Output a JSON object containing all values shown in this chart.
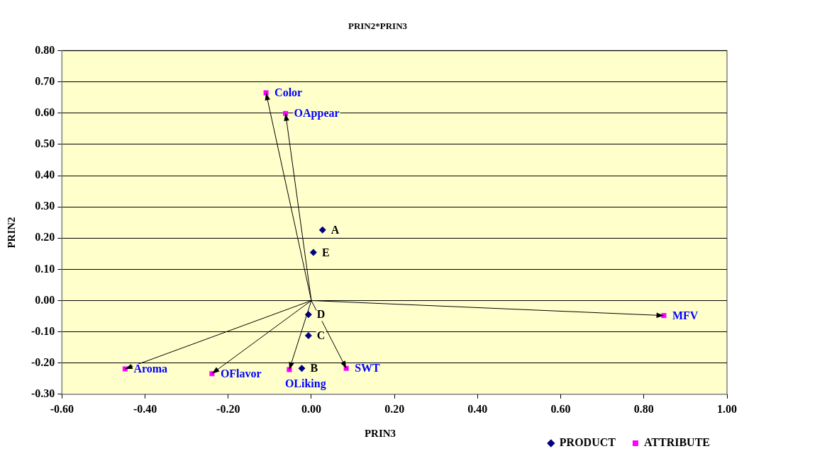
{
  "chart_data": {
    "type": "scatter",
    "title": "PRIN2*PRIN3",
    "xlabel": "PRIN3",
    "ylabel": "PRIN2",
    "series": [
      {
        "name": "PRODUCT",
        "color": "#000080",
        "marker": "diamond",
        "x": [
          0.027,
          0.005,
          -0.007,
          -0.007,
          -0.023
        ],
        "values": [
          0.226,
          0.154,
          -0.045,
          -0.112,
          -0.217
        ]
      },
      {
        "name": "ATTRIBUTE",
        "color": "#ff00ff",
        "marker": "square",
        "x": [
          -0.109,
          -0.062,
          -0.448,
          -0.239,
          -0.053,
          0.084,
          0.848
        ],
        "values": [
          0.665,
          0.599,
          -0.219,
          -0.234,
          -0.221,
          -0.217,
          -0.048
        ]
      }
    ],
    "annotations": [
      {
        "text": "A",
        "x": 0.027,
        "y": 0.226
      },
      {
        "text": "E",
        "x": 0.005,
        "y": 0.154
      },
      {
        "text": "D",
        "x": -0.007,
        "y": -0.045
      },
      {
        "text": "C",
        "x": -0.007,
        "y": -0.112
      },
      {
        "text": "B",
        "x": -0.023,
        "y": -0.217
      },
      {
        "text": "Color",
        "x": -0.109,
        "y": 0.665
      },
      {
        "text": "OAppear",
        "x": -0.062,
        "y": 0.599
      },
      {
        "text": "Aroma",
        "x": -0.448,
        "y": -0.219
      },
      {
        "text": "OFlavor",
        "x": -0.239,
        "y": -0.234
      },
      {
        "text": "OLiking",
        "x": -0.053,
        "y": -0.221
      },
      {
        "text": "SWT",
        "x": 0.084,
        "y": -0.217
      },
      {
        "text": "MFV",
        "x": 0.848,
        "y": -0.048
      }
    ],
    "xlim": [
      -0.6,
      1.0
    ],
    "xticks": [
      {
        "value": -0.6,
        "label": "-0.60"
      },
      {
        "value": -0.4,
        "label": "-0.40"
      },
      {
        "value": -0.2,
        "label": "-0.20"
      },
      {
        "value": 0,
        "label": "0.00"
      },
      {
        "value": 0.2,
        "label": "0.20"
      },
      {
        "value": 0.4,
        "label": "0.40"
      },
      {
        "value": 0.6,
        "label": "0.60"
      },
      {
        "value": 0.8,
        "label": "0.80"
      },
      {
        "value": 1.0,
        "label": "1.00"
      }
    ],
    "ylim": [
      -0.3,
      0.8
    ],
    "yticks": [
      {
        "value": -0.3,
        "label": "-0.30"
      },
      {
        "value": -0.2,
        "label": "-0.20"
      },
      {
        "value": -0.1,
        "label": "-0.10"
      },
      {
        "value": 0,
        "label": "0.00"
      },
      {
        "value": 0.1,
        "label": "0.10"
      },
      {
        "value": 0.2,
        "label": "0.20"
      },
      {
        "value": 0.3,
        "label": "0.30"
      },
      {
        "value": 0.4,
        "label": "0.40"
      },
      {
        "value": 0.5,
        "label": "0.50"
      },
      {
        "value": 0.6,
        "label": "0.60"
      },
      {
        "value": 0.7,
        "label": "0.70"
      },
      {
        "value": 0.8,
        "label": "0.80"
      }
    ],
    "grid": "y",
    "legend": "bottom right"
  }
}
